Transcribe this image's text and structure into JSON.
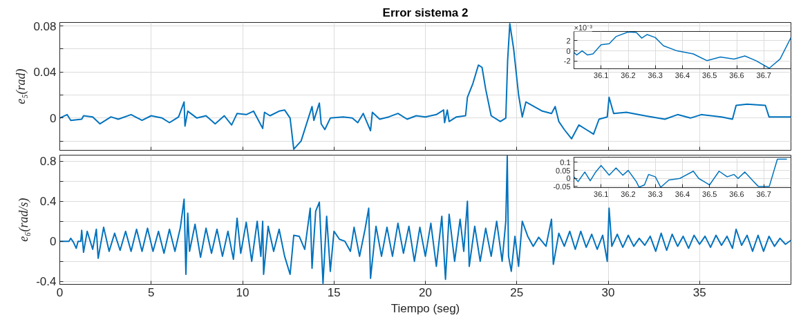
{
  "chart_data": [
    {
      "type": "line",
      "title": "Error sistema 2",
      "ylabel": "e₅(rad)",
      "xlim": [
        0,
        40
      ],
      "ylim": [
        -0.028,
        0.083
      ],
      "xticks": [
        0,
        5,
        10,
        15,
        20,
        25,
        30,
        35
      ],
      "yticks": [
        {
          "value": -0.02,
          "label": null
        },
        0,
        {
          "value": 0.02,
          "label": null
        },
        0.04,
        {
          "value": 0.06,
          "label": null
        },
        0.08
      ],
      "grid": true,
      "tick_labels": "y",
      "series": [
        {
          "color": "#0072bd",
          "x": [
            0,
            0.4,
            0.6,
            1.2,
            1.3,
            1.8,
            2.2,
            2.5,
            2.8,
            3.2,
            3.9,
            4.5,
            5.0,
            5.6,
            6.0,
            6.5,
            6.8,
            6.85,
            7.0,
            7.5,
            8.0,
            8.5,
            9.0,
            9.4,
            9.7,
            10.2,
            10.6,
            11.1,
            11.2,
            11.5,
            12.0,
            12.3,
            12.6,
            12.8,
            13.2,
            13.5,
            13.8,
            13.9,
            14.2,
            14.3,
            14.5,
            14.8,
            15.5,
            16.0,
            16.3,
            16.6,
            17.0,
            17.1,
            17.5,
            18.0,
            18.5,
            19.0,
            19.5,
            20.0,
            20.6,
            21.0,
            21.05,
            21.2,
            21.3,
            21.7,
            22.2,
            22.3,
            22.6,
            22.9,
            23.1,
            23.3,
            23.6,
            24.1,
            24.4,
            24.5,
            24.62,
            24.83,
            25.1,
            25.3,
            25.5,
            26.4,
            26.9,
            27.1,
            27.3,
            27.6,
            28.0,
            28.4,
            28.8,
            29.2,
            29.5,
            29.95,
            30.05,
            30.3,
            31.0,
            32.0,
            33.1,
            33.8,
            34.5,
            35.1,
            36.2,
            36.8,
            37.0,
            37.6,
            38.6,
            38.8,
            40.0
          ],
          "values": [
            0,
            0.003,
            -0.002,
            -0.001,
            0.002,
            0.001,
            -0.005,
            -0.002,
            0.001,
            -0.001,
            0.003,
            -0.002,
            0.002,
            0.0,
            -0.004,
            0.001,
            0.014,
            -0.007,
            0.006,
            0.0,
            0.002,
            -0.005,
            0.002,
            -0.006,
            0.004,
            0.003,
            0.006,
            -0.009,
            0.005,
            0.002,
            0.006,
            0.007,
            0.0,
            -0.027,
            -0.02,
            -0.005,
            0.01,
            -0.002,
            0.013,
            -0.005,
            -0.01,
            0.0,
            0.001,
            0.0,
            -0.004,
            0.004,
            -0.011,
            0.005,
            -0.001,
            0.001,
            0.004,
            -0.001,
            0.002,
            0.001,
            0.003,
            0.007,
            -0.004,
            0.007,
            -0.003,
            0.001,
            0.002,
            0.018,
            0.03,
            0.046,
            0.044,
            0.025,
            0.002,
            -0.003,
            0.0,
            0.05,
            0.082,
            0.06,
            0.02,
            0.001,
            0.014,
            0.006,
            0.004,
            0.01,
            -0.003,
            -0.01,
            -0.018,
            -0.006,
            -0.01,
            -0.014,
            -0.001,
            0.001,
            0.018,
            0.004,
            0.005,
            0.002,
            -0.001,
            0.003,
            0.0,
            0.003,
            0.001,
            -0.001,
            0.011,
            0.012,
            0.011,
            0.001,
            0.001
          ]
        }
      ]
    },
    {
      "type": "line",
      "annotations": [
        "×10⁻³"
      ],
      "xlim": [
        36.0,
        36.8
      ],
      "ylim": [
        -3.5,
        3.8
      ],
      "xticks": [
        36.1,
        36.2,
        36.3,
        36.4,
        36.5,
        36.6,
        36.7
      ],
      "yticks": [
        -2,
        0,
        2
      ],
      "grid": true,
      "series": [
        {
          "color": "#0072bd",
          "x": [
            36.0,
            36.01,
            36.03,
            36.05,
            36.07,
            36.1,
            36.13,
            36.155,
            36.2,
            36.23,
            36.25,
            36.27,
            36.3,
            36.33,
            36.38,
            36.44,
            36.49,
            36.54,
            36.59,
            36.63,
            36.67,
            36.72,
            36.76,
            36.8
          ],
          "values": [
            -0.3,
            -0.8,
            0.0,
            -0.8,
            -0.6,
            1.2,
            1.4,
            2.8,
            3.7,
            3.6,
            2.5,
            3.2,
            2.6,
            1.0,
            0.0,
            -0.6,
            -1.9,
            -1.2,
            -1.6,
            -1.0,
            -1.9,
            -3.4,
            -1.6,
            2.6
          ]
        }
      ]
    },
    {
      "type": "line",
      "xlabel": "Tiempo (seg)",
      "ylabel": "e₆(rad/s)",
      "xlim": [
        0,
        40
      ],
      "ylim": [
        -0.43,
        0.86
      ],
      "xticks": [
        0,
        5,
        10,
        15,
        20,
        25,
        30,
        35
      ],
      "yticks": [
        -0.4,
        {
          "value": -0.2,
          "label": null
        },
        0,
        {
          "value": 0.2,
          "label": null
        },
        0.4,
        {
          "value": 0.6,
          "label": null
        },
        0.8
      ],
      "grid": true,
      "series": [
        {
          "color": "#0072bd",
          "x": [
            0,
            0.5,
            0.6,
            0.75,
            0.9,
            1.0,
            1.15,
            1.2,
            1.3,
            1.5,
            1.8,
            2.0,
            2.1,
            2.4,
            2.7,
            3.0,
            3.3,
            3.6,
            3.9,
            4.2,
            4.5,
            4.8,
            5.1,
            5.4,
            5.7,
            6.0,
            6.3,
            6.6,
            6.8,
            6.9,
            7.0,
            7.1,
            7.4,
            7.7,
            8.0,
            8.3,
            8.6,
            8.9,
            9.2,
            9.5,
            9.7,
            9.9,
            10.2,
            10.5,
            10.8,
            11.0,
            11.1,
            11.15,
            11.4,
            11.7,
            12.0,
            12.3,
            12.6,
            12.8,
            13.1,
            13.4,
            13.7,
            13.8,
            14.0,
            14.2,
            14.4,
            14.6,
            14.8,
            15.0,
            15.3,
            15.6,
            15.9,
            16.1,
            16.4,
            16.7,
            16.9,
            17.0,
            17.3,
            17.6,
            17.9,
            18.2,
            18.5,
            18.8,
            19.1,
            19.4,
            19.7,
            20.0,
            20.3,
            20.6,
            20.9,
            21.1,
            21.3,
            21.6,
            21.9,
            22.1,
            22.3,
            22.4,
            22.7,
            23.0,
            23.3,
            23.6,
            23.9,
            24.2,
            24.4,
            24.48,
            24.55,
            24.7,
            24.9,
            25.1,
            25.3,
            25.6,
            25.9,
            26.2,
            26.6,
            26.9,
            27.0,
            27.3,
            27.6,
            27.9,
            28.2,
            28.5,
            28.8,
            29.1,
            29.4,
            29.7,
            29.95,
            30.05,
            30.2,
            30.5,
            30.8,
            31.1,
            31.4,
            31.7,
            32.0,
            32.3,
            32.6,
            32.9,
            33.2,
            33.5,
            33.8,
            34.1,
            34.4,
            34.7,
            35.0,
            35.3,
            35.6,
            35.9,
            36.2,
            36.5,
            36.8,
            37.0,
            37.3,
            37.6,
            37.9,
            38.2,
            38.5,
            38.8,
            39.1,
            39.4,
            39.7,
            40.0
          ],
          "values": [
            0,
            0.0,
            0.03,
            -0.01,
            -0.07,
            0.0,
            0.0,
            0.11,
            -0.11,
            0.1,
            -0.08,
            0.12,
            -0.17,
            0.14,
            -0.1,
            0.08,
            -0.09,
            0.1,
            -0.1,
            0.12,
            -0.1,
            0.13,
            -0.1,
            0.1,
            -0.12,
            0.12,
            -0.1,
            0.14,
            0.42,
            -0.33,
            0.28,
            -0.1,
            0.17,
            -0.16,
            0.13,
            -0.12,
            0.12,
            -0.15,
            0.1,
            -0.18,
            0.23,
            -0.12,
            0.19,
            -0.2,
            0.2,
            -0.15,
            0.2,
            -0.33,
            0.15,
            -0.1,
            0.12,
            -0.15,
            -0.33,
            0.06,
            0.05,
            -0.08,
            0.33,
            -0.27,
            0.3,
            0.39,
            -0.42,
            0.25,
            -0.3,
            0.1,
            0.02,
            0.0,
            -0.1,
            0.14,
            -0.15,
            0.12,
            0.33,
            -0.37,
            0.15,
            -0.15,
            0.14,
            -0.15,
            0.18,
            -0.12,
            0.15,
            -0.2,
            0.14,
            -0.15,
            0.18,
            -0.25,
            0.25,
            -0.38,
            0.27,
            -0.2,
            0.22,
            -0.1,
            0.4,
            -0.25,
            0.15,
            -0.2,
            0.13,
            -0.15,
            0.2,
            -0.2,
            0.2,
            0.85,
            -0.15,
            -0.3,
            0.05,
            -0.25,
            0.2,
            0.05,
            -0.05,
            0.04,
            -0.05,
            0.22,
            -0.23,
            0.08,
            -0.05,
            0.1,
            -0.08,
            0.1,
            -0.06,
            0.07,
            -0.08,
            0.06,
            -0.2,
            0.33,
            -0.05,
            0.07,
            -0.06,
            0.06,
            -0.05,
            0.03,
            -0.04,
            0.05,
            -0.1,
            0.08,
            -0.09,
            0.07,
            -0.05,
            0.05,
            -0.07,
            0.06,
            -0.03,
            0.05,
            -0.06,
            0.06,
            -0.04,
            0.05,
            -0.07,
            0.12,
            -0.04,
            0.06,
            -0.1,
            0.06,
            -0.1,
            0.05,
            -0.05,
            0.03,
            -0.03,
            0.01
          ]
        }
      ]
    },
    {
      "type": "line",
      "xlim": [
        36.0,
        36.8
      ],
      "ylim": [
        -0.057,
        0.132
      ],
      "xticks": [
        36.1,
        36.2,
        36.3,
        36.4,
        36.5,
        36.6,
        36.7
      ],
      "yticks": [
        -0.05,
        0,
        0.05,
        0.1
      ],
      "grid": true,
      "series": [
        {
          "color": "#0072bd",
          "x": [
            36.0,
            36.015,
            36.04,
            36.06,
            36.08,
            36.1,
            36.13,
            36.155,
            36.18,
            36.2,
            36.23,
            36.24,
            36.26,
            36.275,
            36.3,
            36.32,
            36.35,
            36.39,
            36.44,
            36.46,
            36.5,
            36.535,
            36.565,
            36.59,
            36.605,
            36.63,
            36.66,
            36.68,
            36.72,
            36.75,
            36.785
          ],
          "values": [
            0.01,
            -0.02,
            0.04,
            -0.015,
            0.04,
            0.08,
            0.02,
            0.065,
            0.02,
            0.05,
            -0.02,
            -0.055,
            -0.04,
            0.025,
            0.01,
            -0.055,
            -0.01,
            0.0,
            0.045,
            0.0,
            -0.04,
            0.045,
            0.01,
            0.025,
            0.0,
            0.04,
            -0.015,
            -0.05,
            -0.05,
            0.12,
            0.12
          ]
        }
      ]
    }
  ]
}
